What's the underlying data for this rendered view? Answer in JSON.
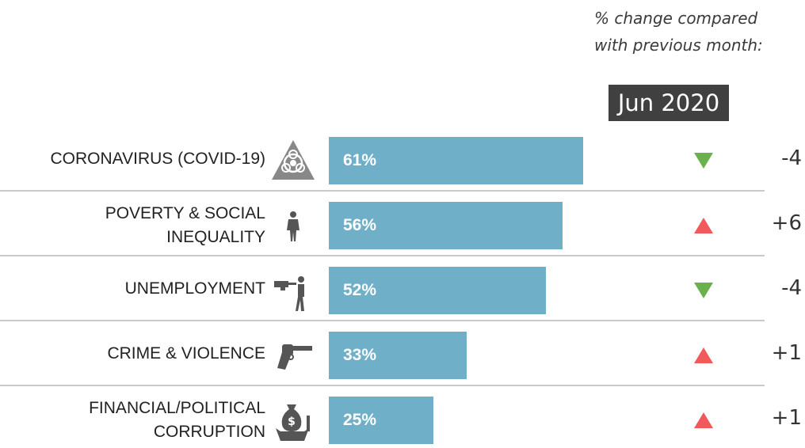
{
  "note": {
    "line1": "% change compared",
    "line2": "with previous month:"
  },
  "period": "Jun 2020",
  "colors": {
    "bar": "#6fb0c8",
    "up": "#f05a5a",
    "down": "#6ab04c",
    "period_box": "#404040"
  },
  "chart_data": {
    "type": "bar",
    "orientation": "horizontal",
    "categories": [
      [
        "CORONAVIRUS (COVID-19)"
      ],
      [
        "POVERTY & SOCIAL",
        "INEQUALITY"
      ],
      [
        "UNEMPLOYMENT"
      ],
      [
        "CRIME & VIOLENCE"
      ],
      [
        "FINANCIAL/POLITICAL",
        "CORRUPTION"
      ]
    ],
    "values": [
      61,
      56,
      52,
      33,
      25
    ],
    "value_labels": [
      "61%",
      "56%",
      "52%",
      "33%",
      "25%"
    ],
    "changes": [
      "-4",
      "+6",
      "-4",
      "+1",
      "+1"
    ],
    "change_direction": [
      "down",
      "up",
      "down",
      "up",
      "up"
    ],
    "icons": [
      "biohazard-icon",
      "person-icon",
      "fired-worker-icon",
      "revolver-icon",
      "money-bag-hand-icon"
    ],
    "xlim": [
      0,
      100
    ],
    "grid": false
  }
}
